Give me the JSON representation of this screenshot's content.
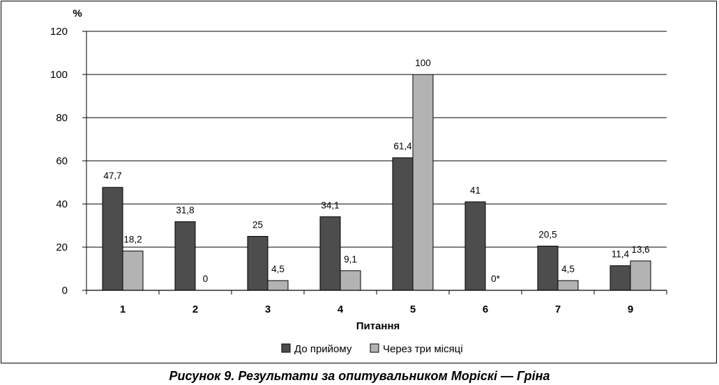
{
  "caption": "Рисунок 9. Результати за опитувальником Моріскі — Гріна",
  "chart_data": {
    "type": "bar",
    "ylabel": "%",
    "xlabel": "Питання",
    "ylim": [
      0,
      120
    ],
    "yticks": [
      0,
      20,
      40,
      60,
      80,
      100,
      120
    ],
    "grid": true,
    "legend_position": "bottom",
    "categories": [
      "1",
      "2",
      "3",
      "4",
      "5",
      "6",
      "7",
      "9"
    ],
    "series": [
      {
        "name": "До прийому",
        "color": "#4d4d4d",
        "values": [
          47.7,
          31.8,
          25,
          34.1,
          61.4,
          41,
          20.5,
          11.4
        ],
        "labels": [
          "47,7",
          "31,8",
          "25",
          "34,1",
          "61,4",
          "41",
          "20,5",
          "11,4"
        ]
      },
      {
        "name": "Через три місяці",
        "color": "#b3b3b3",
        "values": [
          18.2,
          0,
          4.5,
          9.1,
          100,
          0,
          4.5,
          13.6
        ],
        "labels": [
          "18,2",
          "0",
          "4,5",
          "9,1",
          "100",
          "0*",
          "4,5",
          "13,6"
        ]
      }
    ]
  }
}
